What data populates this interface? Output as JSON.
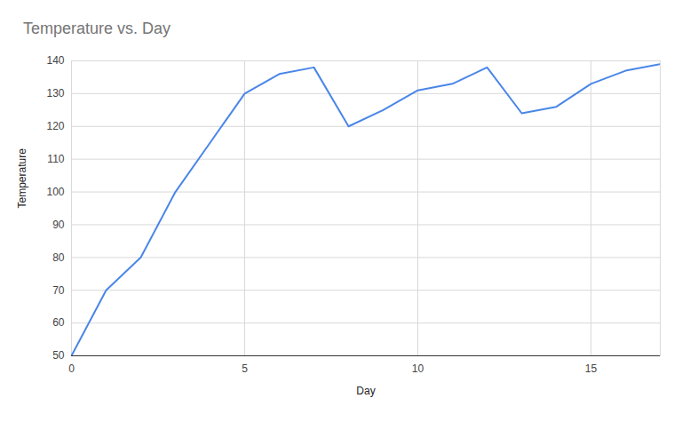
{
  "chart_data": {
    "type": "line",
    "title": "Temperature vs. Day",
    "x_label": "Day",
    "y_label": "Temperature",
    "x": [
      0,
      1,
      2,
      3,
      4,
      5,
      6,
      7,
      8,
      9,
      10,
      11,
      12,
      13,
      14,
      15,
      16,
      17
    ],
    "values": [
      50,
      70,
      80,
      100,
      115,
      130,
      136,
      138,
      120,
      125,
      131,
      133,
      138,
      124,
      126,
      133,
      137,
      139
    ],
    "color": "#4a86e8",
    "xlim": [
      0,
      17
    ],
    "xticks": [
      0,
      5,
      10,
      15
    ],
    "ylim": [
      50,
      140
    ],
    "yticks": [
      50,
      60,
      70,
      80,
      90,
      100,
      110,
      120,
      130,
      140
    ],
    "grid": true
  }
}
